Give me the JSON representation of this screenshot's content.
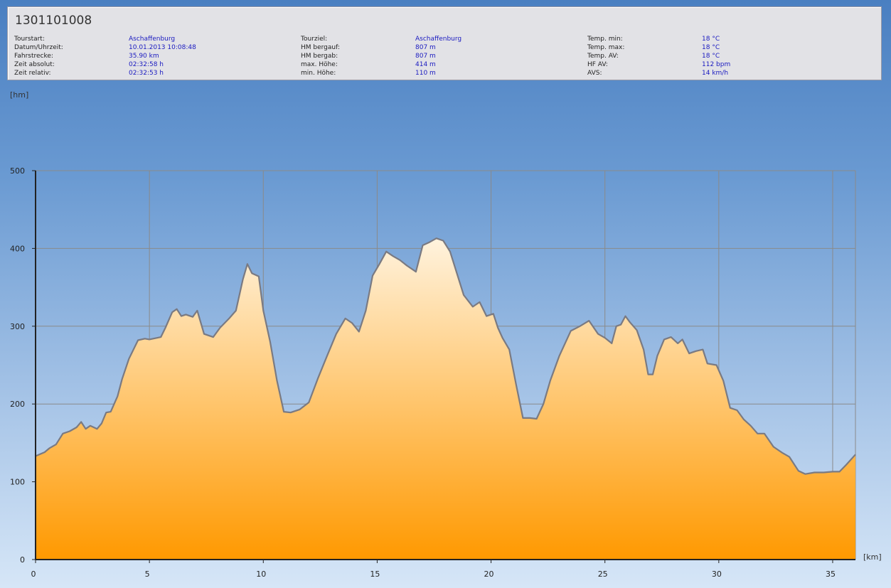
{
  "header": {
    "title": "1301101008",
    "columns": [
      [
        {
          "label": "Tourstart:",
          "value": "Aschaffenburg"
        },
        {
          "label": "Datum/Uhrzeit:",
          "value": "10.01.2013 10:08:48"
        },
        {
          "label": "Fahrstrecke:",
          "value": "35.90 km"
        },
        {
          "label": "Zeit absolut:",
          "value": "02:32:58 h"
        },
        {
          "label": "Zeit relativ:",
          "value": "02:32:53 h"
        }
      ],
      [
        {
          "label": "Tourziel:",
          "value": "Aschaffenburg"
        },
        {
          "label": "HM bergauf:",
          "value": "807 m"
        },
        {
          "label": "HM bergab:",
          "value": "807 m"
        },
        {
          "label": "max. Höhe:",
          "value": "414 m"
        },
        {
          "label": "min. Höhe:",
          "value": "110 m"
        }
      ],
      [
        {
          "label": "Temp. min:",
          "value": "18 °C"
        },
        {
          "label": "Temp. max:",
          "value": "18 °C"
        },
        {
          "label": "Temp. AV:",
          "value": "18 °C"
        },
        {
          "label": "HF AV:",
          "value": "112 bpm"
        },
        {
          "label": "AVS:",
          "value": "14 km/h"
        }
      ]
    ]
  },
  "chart_data": {
    "type": "area",
    "xlabel": "[km]",
    "ylabel": "[hm]",
    "xlim": [
      0,
      36
    ],
    "ylim": [
      0,
      500
    ],
    "x_ticks": [
      0,
      5,
      10,
      15,
      20,
      25,
      30,
      35
    ],
    "y_ticks": [
      0,
      100,
      200,
      300,
      400,
      500
    ],
    "grid": true,
    "colors": {
      "fill_top": "#fff3de",
      "fill_bottom": "#ff9900",
      "line": "#7a7a82",
      "grid": "#8a8a8a"
    },
    "x": [
      0,
      0.4,
      0.6,
      0.9,
      1.2,
      1.5,
      1.8,
      2.0,
      2.2,
      2.4,
      2.7,
      2.9,
      3.1,
      3.3,
      3.6,
      3.8,
      4.1,
      4.5,
      4.8,
      5.0,
      5.5,
      5.7,
      6.0,
      6.2,
      6.4,
      6.6,
      6.9,
      7.1,
      7.4,
      7.8,
      8.1,
      8.5,
      8.8,
      9.1,
      9.3,
      9.5,
      9.8,
      10.0,
      10.3,
      10.6,
      10.9,
      11.2,
      11.6,
      12.0,
      12.4,
      12.8,
      13.2,
      13.6,
      13.9,
      14.2,
      14.5,
      14.8,
      15.1,
      15.4,
      15.7,
      16.0,
      16.3,
      16.7,
      17.0,
      17.3,
      17.6,
      17.9,
      18.2,
      18.5,
      18.8,
      19.2,
      19.5,
      19.8,
      20.1,
      20.3,
      20.5,
      20.8,
      21.1,
      21.4,
      21.7,
      22.0,
      22.3,
      22.6,
      23.0,
      23.5,
      23.9,
      24.3,
      24.7,
      25.0,
      25.3,
      25.5,
      25.7,
      25.9,
      26.1,
      26.4,
      26.7,
      26.9,
      27.1,
      27.3,
      27.6,
      27.9,
      28.2,
      28.4,
      28.7,
      29.0,
      29.3,
      29.5,
      29.9,
      30.2,
      30.5,
      30.8,
      31.1,
      31.4,
      31.7,
      32.0,
      32.4,
      32.8,
      33.1,
      33.5,
      33.8,
      34.2,
      34.6,
      35.0,
      35.3,
      35.6,
      36.0
    ],
    "y": [
      133,
      138,
      143,
      148,
      162,
      165,
      170,
      177,
      168,
      172,
      168,
      175,
      189,
      190,
      210,
      232,
      258,
      282,
      284,
      283,
      286,
      298,
      318,
      322,
      313,
      315,
      312,
      320,
      290,
      286,
      298,
      310,
      320,
      360,
      380,
      368,
      364,
      320,
      280,
      230,
      190,
      189,
      193,
      202,
      233,
      262,
      290,
      310,
      304,
      293,
      320,
      365,
      380,
      396,
      390,
      385,
      378,
      370,
      404,
      408,
      413,
      410,
      396,
      368,
      340,
      325,
      331,
      313,
      316,
      298,
      285,
      270,
      225,
      182,
      182,
      181,
      200,
      230,
      262,
      294,
      300,
      307,
      290,
      285,
      278,
      300,
      302,
      313,
      305,
      295,
      270,
      238,
      238,
      262,
      283,
      286,
      278,
      283,
      265,
      268,
      270,
      252,
      250,
      230,
      195,
      192,
      180,
      172,
      162,
      162,
      145,
      137,
      132,
      114,
      110,
      112,
      112,
      113,
      113,
      122,
      135
    ]
  }
}
